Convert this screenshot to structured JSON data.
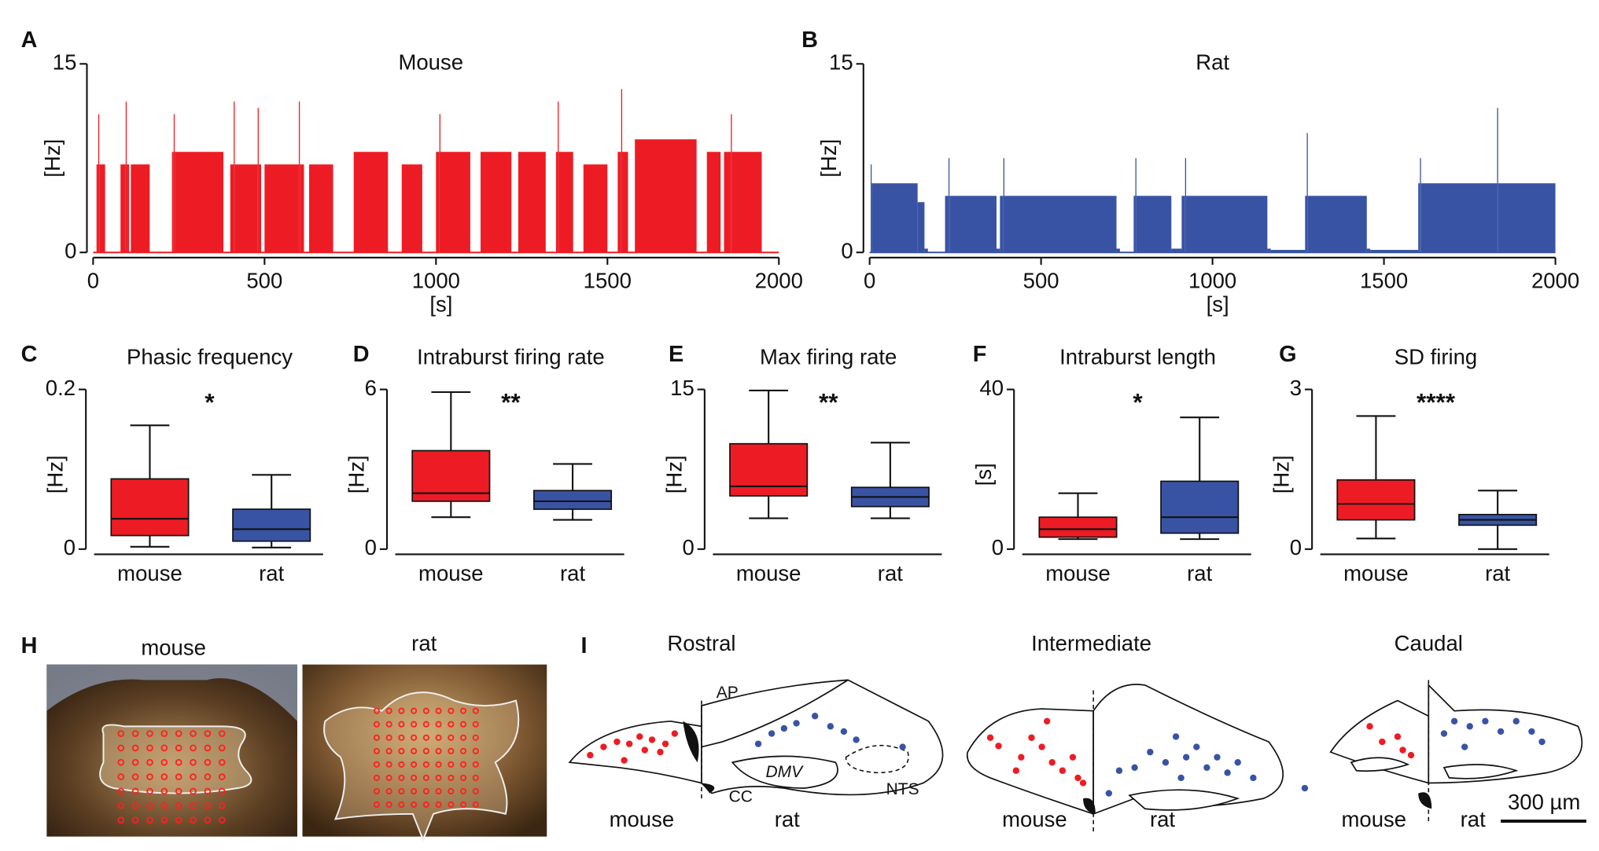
{
  "panel_labels": [
    "A",
    "B",
    "C",
    "D",
    "E",
    "F",
    "G",
    "H",
    "I"
  ],
  "chart_data": [
    {
      "type": "step-area",
      "title": "Mouse",
      "ylabel": "[Hz]",
      "xlabel": "[s]",
      "color": "#ed1c24",
      "xlim": [
        0,
        2000
      ],
      "xticks": [
        0,
        500,
        1000,
        1500,
        2000
      ],
      "ylim": [
        0,
        15
      ],
      "yticks": [
        0,
        15
      ],
      "x": [
        0,
        10,
        15,
        18,
        35,
        80,
        95,
        98,
        105,
        110,
        165,
        230,
        235,
        238,
        380,
        400,
        410,
        413,
        480,
        483,
        490,
        500,
        600,
        603,
        615,
        630,
        700,
        760,
        860,
        900,
        960,
        1000,
        1010,
        1013,
        1100,
        1130,
        1220,
        1240,
        1320,
        1350,
        1355,
        1358,
        1400,
        1430,
        1500,
        1530,
        1540,
        1543,
        1560,
        1580,
        1760,
        1790,
        1830,
        1840,
        1860,
        1863,
        1950,
        2000
      ],
      "values": [
        0,
        7,
        11,
        7,
        0,
        7,
        12,
        7,
        0,
        7,
        0,
        8,
        11,
        8,
        0,
        7,
        12,
        7,
        11.5,
        7,
        0,
        7,
        12,
        7,
        0,
        7,
        0,
        8,
        0,
        7,
        0,
        8,
        11,
        8,
        0,
        8,
        0,
        8,
        0,
        8,
        12,
        8,
        0,
        7,
        0,
        8,
        13,
        8,
        0,
        9,
        0,
        8,
        0,
        8,
        11,
        8,
        0,
        0
      ]
    },
    {
      "type": "step-area",
      "title": "Rat",
      "ylabel": "[Hz]",
      "xlabel": "[s]",
      "color": "#3953a4",
      "xlim": [
        0,
        2000
      ],
      "xticks": [
        0,
        500,
        1000,
        1500,
        2000
      ],
      "ylim": [
        0,
        15
      ],
      "yticks": [
        0,
        15
      ],
      "x": [
        0,
        3,
        6,
        140,
        160,
        170,
        220,
        230,
        233,
        370,
        380,
        390,
        393,
        720,
        730,
        770,
        775,
        778,
        880,
        910,
        920,
        923,
        1160,
        1170,
        1270,
        1275,
        1278,
        1450,
        1460,
        1600,
        1605,
        1608,
        1830,
        1833,
        2000
      ],
      "values": [
        0,
        7,
        5.5,
        4,
        0.3,
        0,
        4.5,
        7.5,
        4.5,
        0.3,
        4.5,
        7.5,
        4.5,
        0.3,
        0,
        4.5,
        7.5,
        4.5,
        0.3,
        4.5,
        7.5,
        4.5,
        0.3,
        0.2,
        4.5,
        9.5,
        4.5,
        0.3,
        0.2,
        5.5,
        7.5,
        5.5,
        11.5,
        5.5,
        0
      ]
    },
    {
      "type": "box",
      "title": "Phasic frequency",
      "ylabel": "[Hz]",
      "annotation": "*",
      "ylim": [
        0,
        0.2
      ],
      "yticks": [
        0,
        0.2
      ],
      "categories": [
        "mouse",
        "rat"
      ],
      "boxes": [
        {
          "color": "#ed1c24",
          "min": 0.003,
          "q1": 0.017,
          "median": 0.038,
          "q3": 0.088,
          "max": 0.155
        },
        {
          "color": "#3953a4",
          "min": 0.002,
          "q1": 0.01,
          "median": 0.025,
          "q3": 0.05,
          "max": 0.093
        }
      ]
    },
    {
      "type": "box",
      "title": "Intraburst firing rate",
      "ylabel": "[Hz]",
      "annotation": "**",
      "ylim": [
        0,
        6
      ],
      "yticks": [
        0,
        6
      ],
      "categories": [
        "mouse",
        "rat"
      ],
      "boxes": [
        {
          "color": "#ed1c24",
          "min": 1.2,
          "q1": 1.8,
          "median": 2.1,
          "q3": 3.7,
          "max": 5.9
        },
        {
          "color": "#3953a4",
          "min": 1.1,
          "q1": 1.5,
          "median": 1.8,
          "q3": 2.2,
          "max": 3.2
        }
      ]
    },
    {
      "type": "box",
      "title": "Max firing rate",
      "ylabel": "[Hz]",
      "annotation": "**",
      "ylim": [
        0,
        15
      ],
      "yticks": [
        0,
        15
      ],
      "categories": [
        "mouse",
        "rat"
      ],
      "boxes": [
        {
          "color": "#ed1c24",
          "min": 2.9,
          "q1": 5,
          "median": 5.9,
          "q3": 9.9,
          "max": 14.9
        },
        {
          "color": "#3953a4",
          "min": 2.9,
          "q1": 4,
          "median": 4.9,
          "q3": 5.8,
          "max": 10
        }
      ]
    },
    {
      "type": "box",
      "title": "Intraburst length",
      "ylabel": "[s]",
      "annotation": "*",
      "ylim": [
        0,
        40
      ],
      "yticks": [
        0,
        40
      ],
      "categories": [
        "mouse",
        "rat"
      ],
      "boxes": [
        {
          "color": "#ed1c24",
          "min": 2.5,
          "q1": 3,
          "median": 5,
          "q3": 8,
          "max": 14
        },
        {
          "color": "#3953a4",
          "min": 2.5,
          "q1": 4,
          "median": 8,
          "q3": 17,
          "max": 33
        }
      ]
    },
    {
      "type": "box",
      "title": "SD firing",
      "ylabel": "[Hz]",
      "annotation": "****",
      "ylim": [
        0,
        3
      ],
      "yticks": [
        0,
        3
      ],
      "categories": [
        "mouse",
        "rat"
      ],
      "boxes": [
        {
          "color": "#ed1c24",
          "min": 0.2,
          "q1": 0.55,
          "median": 0.85,
          "q3": 1.3,
          "max": 2.5
        },
        {
          "color": "#3953a4",
          "min": 0,
          "q1": 0.45,
          "median": 0.55,
          "q3": 0.65,
          "max": 1.1
        }
      ]
    }
  ],
  "H": {
    "labels": [
      "mouse",
      "rat"
    ]
  },
  "I": {
    "sections": [
      "Rostral",
      "Intermediate",
      "Caudal"
    ],
    "AP": "AP",
    "DMV": "DMV",
    "NTS": "NTS",
    "CC": "CC",
    "species": [
      "mouse",
      "rat",
      "mouse",
      "rat",
      "mouse",
      "rat"
    ],
    "scale_bar": "300 µm"
  }
}
